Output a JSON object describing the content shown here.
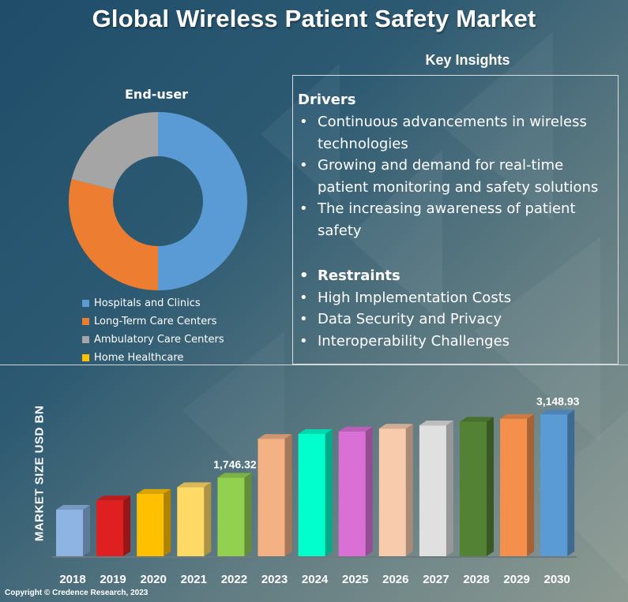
{
  "title": "Global Wireless Patient Safety Market",
  "key_insights": {
    "title": "Key Insights",
    "drivers_heading": "Drivers",
    "drivers": [
      "Continuous advancements in wireless technologies",
      "Growing and demand for real-time patient monitoring and safety solutions",
      "The increasing awareness of patient safety"
    ],
    "restraints_heading": "Restraints",
    "restraints": [
      "High Implementation Costs",
      "Data Security and Privacy",
      "Interoperability Challenges"
    ]
  },
  "copyright": "Copyright © Credence Research, 2023",
  "chart_data": [
    {
      "type": "pie",
      "title": "End-user",
      "donut": true,
      "categories": [
        "Hospitals and Clinics",
        "Long-Term Care Centers",
        "Ambulatory Care Centers",
        "Home Healthcare"
      ],
      "values": [
        50,
        29,
        21,
        0
      ],
      "colors": [
        "#5b9bd5",
        "#ed7d31",
        "#a5a5a5",
        "#ffc000"
      ],
      "legend": "bottom-left"
    },
    {
      "type": "bar",
      "title": "",
      "xlabel": "",
      "ylabel": "MARKET SIZE USD BN",
      "categories": [
        "2018",
        "2019",
        "2020",
        "2021",
        "2022",
        "2023",
        "2024",
        "2025",
        "2026",
        "2027",
        "2028",
        "2029",
        "2030"
      ],
      "values": [
        1034,
        1239,
        1387,
        1535,
        1746.32,
        2608,
        2717,
        2771,
        2835,
        2906,
        2989,
        3052,
        3148.93
      ],
      "data_labels": {
        "4": "1,746.32",
        "12": "3,148.93"
      },
      "ylim": [
        0,
        3400
      ],
      "colors": [
        "#8db4e2",
        "#e02020",
        "#ffc000",
        "#ffd966",
        "#92d050",
        "#f4b183",
        "#00ffcc",
        "#da70d6",
        "#f8cbad",
        "#e0e0e0",
        "#548235",
        "#f4904c",
        "#5b9bd5"
      ],
      "grid": false
    }
  ]
}
